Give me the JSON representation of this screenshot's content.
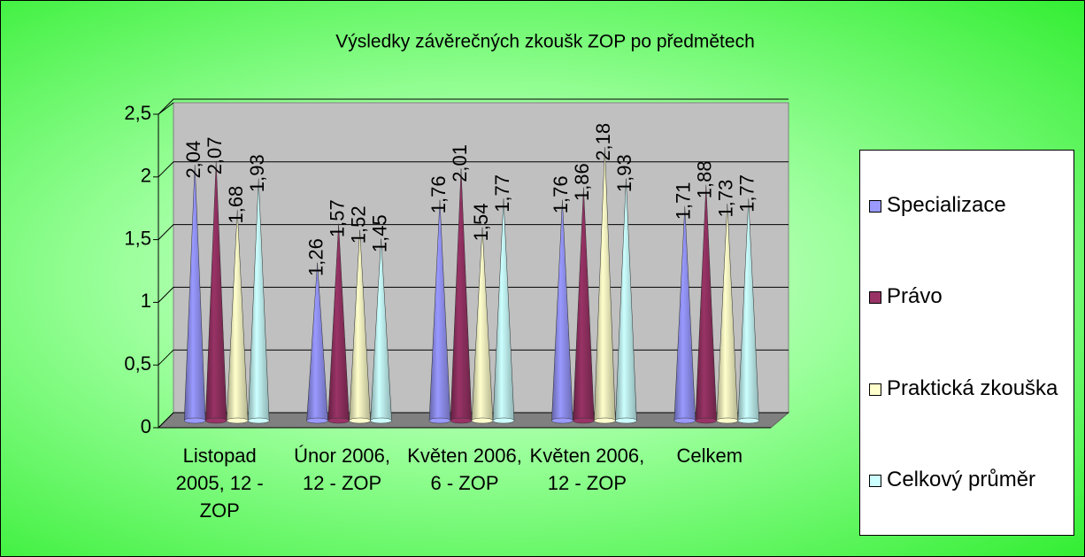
{
  "chart_data": {
    "type": "cone",
    "title": "Výsledky závěrečných zkoušk ZOP po předmětech",
    "categories": [
      "Listopad 2005, 12 - ZOP",
      "Únor 2006, 12 - ZOP",
      "Květen 2006, 6 - ZOP",
      "Květen 2006, 12 - ZOP",
      "Celkem"
    ],
    "series": [
      {
        "name": "Specializace",
        "color": "#9999ff",
        "values": [
          2.04,
          1.26,
          1.76,
          1.76,
          1.71
        ],
        "value_labels": [
          "2,04",
          "1,26",
          "1,76",
          "1,76",
          "1,71"
        ]
      },
      {
        "name": "Právo",
        "color": "#993366",
        "values": [
          2.07,
          1.57,
          2.01,
          1.86,
          1.88
        ],
        "value_labels": [
          "2,07",
          "1,57",
          "2,01",
          "1,86",
          "1,88"
        ]
      },
      {
        "name": "Praktická zkouška",
        "color": "#ffffcc",
        "values": [
          1.68,
          1.52,
          1.54,
          2.18,
          1.73
        ],
        "value_labels": [
          "1,68",
          "1,52",
          "1,54",
          "2,18",
          "1,73"
        ]
      },
      {
        "name": "Celkový průměr",
        "color": "#ccffff",
        "values": [
          1.93,
          1.45,
          1.77,
          1.93,
          1.77
        ],
        "value_labels": [
          "1,93",
          "1,45",
          "1,77",
          "1,93",
          "1,77"
        ]
      }
    ],
    "ylim": [
      0,
      2.5
    ],
    "yticks": [
      0,
      {
        "value": 0.5,
        "label": "0,5"
      },
      1,
      {
        "value": 1.5,
        "label": "1,5"
      },
      2,
      {
        "value": 2.5,
        "label": "2,5"
      }
    ],
    "grid": true,
    "legend": "right"
  }
}
